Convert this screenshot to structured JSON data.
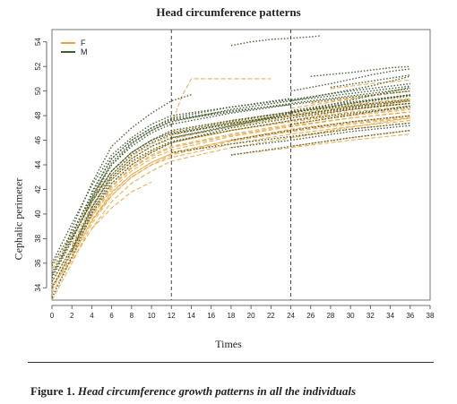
{
  "chart_data": {
    "type": "line",
    "title": "Head circumference patterns",
    "xlabel": "Times",
    "ylabel": "Cephalic perimeter",
    "xlim": [
      0,
      38
    ],
    "ylim": [
      33,
      55
    ],
    "xticks": [
      0,
      2,
      4,
      6,
      8,
      10,
      12,
      14,
      16,
      18,
      20,
      22,
      24,
      26,
      28,
      30,
      32,
      34,
      36,
      38
    ],
    "yticks": [
      34,
      36,
      38,
      40,
      42,
      44,
      46,
      48,
      50,
      52,
      54
    ],
    "vlines": [
      12,
      24
    ],
    "legend": [
      {
        "name": "F",
        "color": "#e8a23a"
      },
      {
        "name": "M",
        "color": "#3e5a2e"
      }
    ],
    "series": [
      {
        "group": "M",
        "x": [
          0,
          2,
          4,
          6,
          8,
          10,
          12,
          18,
          24,
          30,
          36
        ],
        "y": [
          35.8,
          38.5,
          41.5,
          44,
          45.5,
          46.6,
          47.3,
          48.2,
          48.9,
          49.5,
          50
        ]
      },
      {
        "group": "M",
        "x": [
          0,
          2,
          4,
          6,
          8,
          10,
          12,
          18,
          24,
          30,
          36
        ],
        "y": [
          34.5,
          37.2,
          40.5,
          43,
          44.5,
          45.5,
          46.2,
          47.2,
          48,
          48.7,
          49.2
        ]
      },
      {
        "group": "M",
        "x": [
          0,
          2,
          4,
          6,
          8,
          10,
          12,
          18,
          24,
          30,
          36
        ],
        "y": [
          36,
          39.2,
          42.3,
          44.8,
          46.2,
          47.3,
          48,
          48.7,
          49.3,
          50,
          50.6
        ]
      },
      {
        "group": "M",
        "x": [
          1,
          2,
          4,
          6,
          8,
          10,
          12,
          14
        ],
        "y": [
          36.5,
          38.8,
          42.5,
          45.5,
          47,
          48.2,
          49.2,
          49.7
        ]
      },
      {
        "group": "M",
        "x": [
          0,
          2,
          4,
          6,
          8,
          10,
          12,
          18,
          24,
          30,
          36
        ],
        "y": [
          33.2,
          36.5,
          40,
          42.5,
          44,
          45,
          45.8,
          47,
          47.8,
          48.5,
          49
        ]
      },
      {
        "group": "M",
        "x": [
          2,
          4,
          6,
          8,
          10,
          12,
          18,
          24,
          30,
          36
        ],
        "y": [
          38,
          41,
          43.5,
          45,
          46,
          46.8,
          47.6,
          48.3,
          48.8,
          49.3
        ]
      },
      {
        "group": "M",
        "x": [
          0,
          2,
          4,
          6,
          8,
          10,
          12,
          18,
          24,
          30,
          36
        ],
        "y": [
          35,
          38,
          41,
          43.5,
          45,
          46,
          46.6,
          47.5,
          48.3,
          49,
          49.6
        ]
      },
      {
        "group": "M",
        "x": [
          3,
          4,
          6,
          8,
          10,
          12,
          18,
          24,
          30,
          36
        ],
        "y": [
          40,
          41.2,
          44,
          45.7,
          46.8,
          47.6,
          48.3,
          49,
          49.6,
          50.2
        ]
      },
      {
        "group": "M",
        "x": [
          0,
          2,
          4,
          6,
          8,
          10,
          12,
          18,
          24,
          30,
          36
        ],
        "y": [
          34.8,
          37.8,
          41.3,
          44.2,
          45.8,
          46.8,
          47.5,
          48.5,
          49.2,
          49.8,
          50.4
        ]
      },
      {
        "group": "M",
        "x": [
          2,
          4,
          6,
          8,
          10,
          12,
          18,
          24,
          30,
          36
        ],
        "y": [
          37,
          40.5,
          43.2,
          44.8,
          45.8,
          46.5,
          47.4,
          48,
          48.6,
          49
        ]
      },
      {
        "group": "M",
        "x": [
          4,
          6,
          8,
          10,
          12,
          18,
          24
        ],
        "y": [
          41.8,
          44.5,
          46,
          47,
          47.7,
          48.4,
          48.9
        ]
      },
      {
        "group": "M",
        "x": [
          0,
          2,
          4,
          6,
          8,
          10,
          12,
          18,
          24
        ],
        "y": [
          35.2,
          38.2,
          41.7,
          44.5,
          46,
          47,
          47.8,
          48.7,
          49.4
        ]
      },
      {
        "group": "M",
        "x": [
          12,
          16,
          20,
          24,
          28,
          32,
          36
        ],
        "y": [
          46.2,
          46.8,
          47.5,
          48.2,
          48.9,
          49.6,
          50.3
        ]
      },
      {
        "group": "M",
        "x": [
          12,
          18,
          24,
          30,
          36
        ],
        "y": [
          46.5,
          47.3,
          48.2,
          49,
          49.7
        ]
      },
      {
        "group": "M",
        "x": [
          18,
          20,
          22,
          24,
          26,
          27
        ],
        "y": [
          53.7,
          54,
          54.2,
          54.3,
          54.4,
          54.5
        ]
      },
      {
        "group": "M",
        "x": [
          24,
          28,
          32,
          34,
          36
        ],
        "y": [
          49.2,
          49.8,
          50.4,
          50.8,
          51.2
        ]
      },
      {
        "group": "M",
        "x": [
          24,
          28,
          32,
          34,
          36
        ],
        "y": [
          50,
          50.6,
          51.3,
          51.6,
          51.8
        ]
      },
      {
        "group": "M",
        "x": [
          24,
          28,
          32,
          36
        ],
        "y": [
          48.4,
          48.9,
          49.3,
          49.7
        ]
      },
      {
        "group": "M",
        "x": [
          24,
          28,
          32,
          36
        ],
        "y": [
          47.3,
          47.8,
          48.3,
          48.8
        ]
      },
      {
        "group": "M",
        "x": [
          18,
          24,
          30,
          36
        ],
        "y": [
          45.4,
          46,
          46.7,
          47.2
        ]
      },
      {
        "group": "M",
        "x": [
          18,
          24,
          30,
          36
        ],
        "y": [
          46,
          46.8,
          47.5,
          48
        ]
      },
      {
        "group": "M",
        "x": [
          18,
          24,
          30,
          36
        ],
        "y": [
          44.8,
          45.5,
          46.2,
          46.8
        ]
      },
      {
        "group": "M",
        "x": [
          12,
          18,
          24,
          30,
          36
        ],
        "y": [
          45,
          45.7,
          46.3,
          46.9,
          47.4
        ]
      },
      {
        "group": "M",
        "x": [
          26,
          30,
          34,
          36
        ],
        "y": [
          51.2,
          51.5,
          51.9,
          52
        ]
      },
      {
        "group": "M",
        "x": [
          28,
          32,
          36
        ],
        "y": [
          50.3,
          50.8,
          51.3
        ]
      },
      {
        "group": "M",
        "x": [
          0,
          2,
          4,
          6,
          8,
          10,
          12,
          18,
          24,
          30,
          36
        ],
        "y": [
          34,
          37,
          40.2,
          42.8,
          44.3,
          45.2,
          45.9,
          46.8,
          47.6,
          48.2,
          48.7
        ]
      },
      {
        "group": "F",
        "x": [
          0,
          2,
          4,
          6,
          8,
          10,
          12,
          18,
          24,
          30,
          36
        ],
        "y": [
          33.8,
          36.8,
          39.8,
          42,
          43.5,
          44.5,
          45.2,
          46.3,
          47.1,
          47.8,
          48.3
        ]
      },
      {
        "group": "F",
        "x": [
          0,
          2,
          4,
          6,
          8,
          10,
          12,
          18,
          24,
          30,
          36
        ],
        "y": [
          34.5,
          37.3,
          40.3,
          42.5,
          44,
          45,
          45.8,
          46.8,
          47.6,
          48.3,
          48.8
        ]
      },
      {
        "group": "F",
        "x": [
          0,
          2,
          4,
          6,
          8,
          10,
          12,
          18,
          24,
          30,
          36
        ],
        "y": [
          33,
          36,
          39.2,
          41.5,
          43,
          44,
          44.6,
          45.7,
          46.5,
          47.1,
          47.6
        ]
      },
      {
        "group": "F",
        "x": [
          0,
          2,
          4,
          6,
          8,
          10,
          12,
          18,
          24,
          30,
          36
        ],
        "y": [
          35,
          38,
          41,
          43.2,
          44.7,
          45.7,
          46.4,
          47.4,
          48.1,
          48.8,
          49.3
        ]
      },
      {
        "group": "F",
        "x": [
          1,
          2,
          4,
          6,
          8,
          10,
          12,
          18,
          24,
          30,
          36
        ],
        "y": [
          35.3,
          36.5,
          39.5,
          41.8,
          43.2,
          44.2,
          44.9,
          46,
          46.8,
          47.4,
          47.9
        ]
      },
      {
        "group": "F",
        "x": [
          0,
          2,
          4,
          6,
          8,
          10,
          12,
          18,
          24,
          30,
          36
        ],
        "y": [
          34,
          37,
          40,
          42.3,
          43.8,
          44.8,
          45.5,
          46.5,
          47.3,
          48,
          48.5
        ]
      },
      {
        "group": "F",
        "x": [
          2,
          4,
          6,
          8,
          10,
          12,
          18,
          24,
          30,
          36
        ],
        "y": [
          37.5,
          40.7,
          43,
          44.5,
          45.5,
          46.1,
          47.1,
          47.9,
          48.5,
          49
        ]
      },
      {
        "group": "F",
        "x": [
          0,
          2,
          4,
          6,
          8,
          10,
          12,
          18,
          24,
          30,
          36
        ],
        "y": [
          34.2,
          36.2,
          38.8,
          41,
          42.5,
          43.5,
          44.3,
          45.4,
          46.2,
          46.9,
          47.4
        ]
      },
      {
        "group": "F",
        "x": [
          0,
          2,
          4,
          6,
          8,
          10,
          12,
          18,
          24,
          30,
          36
        ],
        "y": [
          35.5,
          38.3,
          41.2,
          43.5,
          45,
          46,
          46.7,
          47.6,
          48.3,
          48.9,
          49.4
        ]
      },
      {
        "group": "F",
        "x": [
          2,
          4,
          6,
          8,
          10,
          12,
          18,
          24,
          30,
          36
        ],
        "y": [
          36.8,
          39.8,
          42.2,
          43.7,
          44.7,
          45.4,
          46.4,
          47.2,
          47.8,
          48.3
        ]
      },
      {
        "group": "F",
        "x": [
          4,
          6,
          8,
          10,
          12,
          18,
          24,
          30,
          36
        ],
        "y": [
          39.5,
          41.5,
          43,
          44,
          44.8,
          45.9,
          46.7,
          47.3,
          47.8
        ]
      },
      {
        "group": "F",
        "x": [
          0,
          2,
          4,
          6,
          8,
          10,
          12
        ],
        "y": [
          33.5,
          36.4,
          39.4,
          41.7,
          43.2,
          44.2,
          44.9
        ]
      },
      {
        "group": "F",
        "x": [
          12,
          13,
          14,
          16,
          18,
          20,
          22
        ],
        "y": [
          47.2,
          49.5,
          51,
          51,
          51,
          51,
          51
        ]
      },
      {
        "group": "F",
        "x": [
          12,
          18,
          24,
          30,
          36
        ],
        "y": [
          45,
          46,
          46.9,
          47.5,
          48
        ]
      },
      {
        "group": "F",
        "x": [
          24,
          28,
          32,
          36
        ],
        "y": [
          48.6,
          49.1,
          49.6,
          50
        ]
      },
      {
        "group": "F",
        "x": [
          24,
          28,
          32,
          36
        ],
        "y": [
          47.6,
          48.2,
          48.7,
          49.2
        ]
      },
      {
        "group": "F",
        "x": [
          24,
          28,
          32,
          36
        ],
        "y": [
          46.2,
          46.8,
          47.3,
          47.8
        ]
      },
      {
        "group": "F",
        "x": [
          24,
          30,
          36
        ],
        "y": [
          45.5,
          46.2,
          46.8
        ]
      },
      {
        "group": "F",
        "x": [
          18,
          24,
          30,
          36
        ],
        "y": [
          47.3,
          48,
          48.7,
          49.2
        ]
      },
      {
        "group": "F",
        "x": [
          18,
          24,
          30,
          36
        ],
        "y": [
          44.8,
          45.4,
          46,
          46.5
        ]
      },
      {
        "group": "F",
        "x": [
          26,
          30,
          34,
          36
        ],
        "y": [
          49,
          49.4,
          49.8,
          50
        ]
      },
      {
        "group": "F",
        "x": [
          28,
          32,
          36
        ],
        "y": [
          50.2,
          50.6,
          50.9
        ]
      },
      {
        "group": "F",
        "x": [
          4,
          6,
          8,
          10
        ],
        "y": [
          38.8,
          40.5,
          41.8,
          42.6
        ]
      },
      {
        "group": "F",
        "x": [
          6,
          8,
          10,
          12,
          18,
          24,
          30,
          36
        ],
        "y": [
          42.8,
          44.2,
          45.1,
          45.8,
          46.8,
          47.5,
          48.1,
          48.6
        ]
      }
    ]
  },
  "caption": {
    "label": "Figure 1.",
    "text": "Head circumference growth patterns in all the individuals"
  }
}
